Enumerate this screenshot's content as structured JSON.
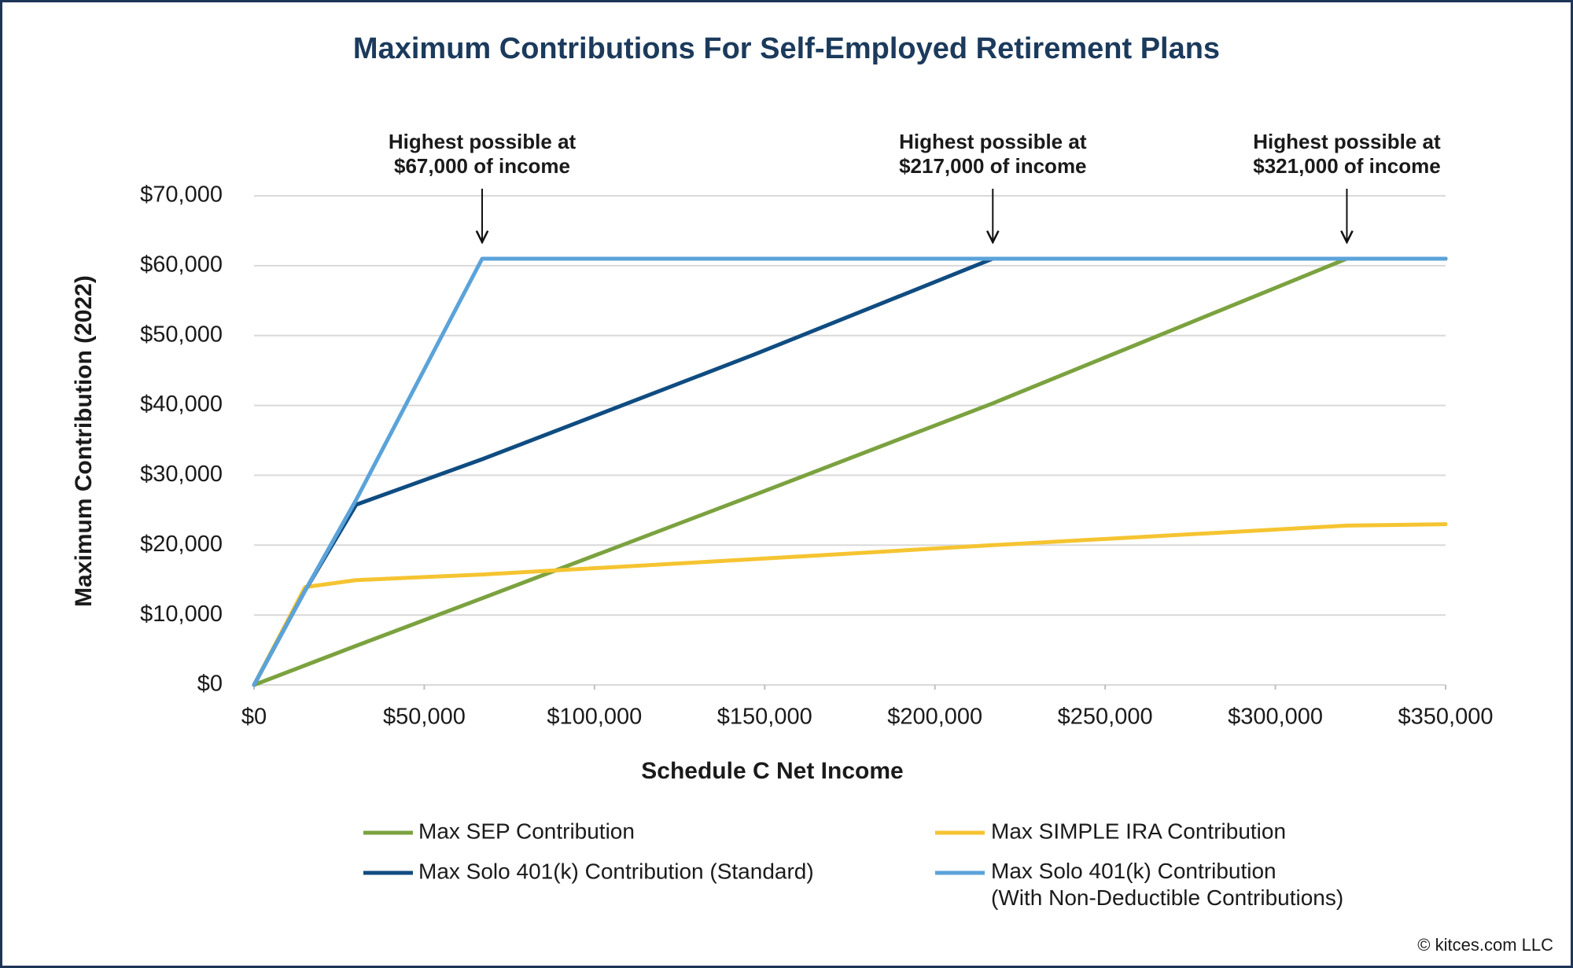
{
  "chart_data": {
    "type": "line",
    "title": "Maximum Contributions For Self-Employed Retirement Plans",
    "x_label": "Schedule C Net Income",
    "y_label": "Maximum Contribution (2022)",
    "x": [
      0,
      15000,
      30000,
      67000,
      147000,
      217000,
      321000,
      350000
    ],
    "series": [
      {
        "name": "Max SEP Contribution",
        "color": "#7ba23f",
        "values": [
          0,
          2800,
          5600,
          12400,
          27200,
          40300,
          61000,
          61000
        ]
      },
      {
        "name": "Max SIMPLE IRA Contribution",
        "color": "#f5c431",
        "values": [
          0,
          14000,
          15000,
          15800,
          18000,
          20000,
          22800,
          23000
        ]
      },
      {
        "name": "Max Solo 401(k) Contribution (Standard)",
        "color": "#0f4c81",
        "values": [
          0,
          13500,
          25800,
          32300,
          47300,
          61000,
          61000,
          61000
        ]
      },
      {
        "name": "Max Solo 401(k) Contribution (With Non-Deductible Contributions)",
        "color": "#5ba3d9",
        "values": [
          0,
          13500,
          26500,
          61000,
          61000,
          61000,
          61000,
          61000
        ]
      }
    ],
    "xlim": [
      0,
      350000
    ],
    "xticks": [
      {
        "value": 0,
        "label": "$0"
      },
      {
        "value": 50000,
        "label": "$50,000"
      },
      {
        "value": 100000,
        "label": "$100,000"
      },
      {
        "value": 150000,
        "label": "$150,000"
      },
      {
        "value": 200000,
        "label": "$200,000"
      },
      {
        "value": 250000,
        "label": "$250,000"
      },
      {
        "value": 300000,
        "label": "$300,000"
      },
      {
        "value": 350000,
        "label": "$350,000"
      }
    ],
    "ylim": [
      0,
      70000
    ],
    "yticks": [
      {
        "value": 0,
        "label": "$0"
      },
      {
        "value": 10000,
        "label": "$10,000"
      },
      {
        "value": 20000,
        "label": "$20,000"
      },
      {
        "value": 30000,
        "label": "$30,000"
      },
      {
        "value": 40000,
        "label": "$40,000"
      },
      {
        "value": 50000,
        "label": "$50,000"
      },
      {
        "value": 60000,
        "label": "$60,000"
      },
      {
        "value": 70000,
        "label": "$70,000"
      }
    ],
    "grid": true,
    "annotations": [
      {
        "lines": [
          "Highest possible at",
          "$67,000 of income"
        ],
        "x": 67000
      },
      {
        "lines": [
          "Highest possible at",
          "$217,000 of income"
        ],
        "x": 217000
      },
      {
        "lines": [
          "Highest possible at",
          "$321,000 of income"
        ],
        "x": 321000
      }
    ],
    "credit": "© kitces.com LLC"
  }
}
